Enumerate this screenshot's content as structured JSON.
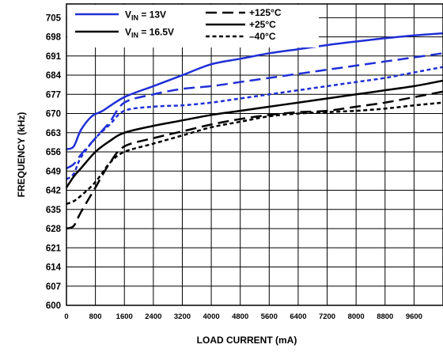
{
  "chart_data": {
    "type": "line",
    "title": "",
    "xlabel": "LOAD CURRENT (mA)",
    "ylabel": "FREQUENCY (kHz)",
    "xlim": [
      0,
      10400
    ],
    "ylim": [
      600,
      710
    ],
    "x_ticks": [
      0,
      800,
      1600,
      2400,
      3200,
      4000,
      4800,
      5600,
      6400,
      7200,
      8000,
      8800,
      9600
    ],
    "y_ticks": [
      600,
      607,
      614,
      621,
      628,
      635,
      642,
      649,
      656,
      663,
      670,
      677,
      684,
      691,
      698,
      705
    ],
    "grid": true,
    "legend": {
      "placement": "top-left",
      "vin_entries": [
        {
          "label_prefix": "V",
          "label_sub": "IN",
          "label_suffix": " = 13V",
          "color": "#1f2fd6"
        },
        {
          "label_prefix": "V",
          "label_sub": "IN",
          "label_suffix": " = 16.5V",
          "color": "#000000"
        }
      ],
      "temp_entries": [
        {
          "label": "+125°C",
          "dash": "long-dash"
        },
        {
          "label": "+25°C",
          "dash": "solid"
        },
        {
          "label": "–40°C",
          "dash": "short-dash"
        }
      ]
    },
    "series": [
      {
        "vin": "13V",
        "temp": "+25°C",
        "color": "#1f2fd6",
        "dash": "solid",
        "x": [
          0,
          200,
          400,
          700,
          1000,
          1600,
          2400,
          3200,
          4000,
          4800,
          5600,
          6400,
          7200,
          8000,
          8800,
          9600,
          10400
        ],
        "y": [
          657,
          658,
          664,
          669,
          671,
          676,
          680,
          684,
          688,
          690,
          692,
          693.5,
          695,
          696.3,
          697.5,
          698.5,
          699.3
        ]
      },
      {
        "vin": "13V",
        "temp": "+125°C",
        "color": "#1f2fd6",
        "dash": "long-dash",
        "x": [
          0,
          200,
          400,
          800,
          1200,
          1600,
          2400,
          3200,
          4000,
          4800,
          5600,
          6400,
          7200,
          8000,
          8800,
          9600,
          10400
        ],
        "y": [
          650,
          651.5,
          655,
          661,
          667,
          674,
          677,
          679,
          680,
          681.5,
          683,
          684.5,
          686,
          687.5,
          689,
          690.5,
          692
        ]
      },
      {
        "vin": "13V",
        "temp": "–40°C",
        "color": "#1f2fd6",
        "dash": "short-dash",
        "x": [
          0,
          200,
          400,
          800,
          1200,
          1600,
          2400,
          3200,
          4000,
          4800,
          5600,
          6400,
          7200,
          8000,
          8800,
          9600,
          10400
        ],
        "y": [
          646,
          648,
          654,
          661,
          666,
          671,
          672.5,
          673,
          674,
          675.5,
          677,
          678.5,
          680,
          681.5,
          683,
          685,
          687
        ]
      },
      {
        "vin": "16.5V",
        "temp": "+25°C",
        "color": "#000000",
        "dash": "solid",
        "x": [
          0,
          200,
          400,
          800,
          1200,
          1600,
          2400,
          3200,
          4000,
          4800,
          5600,
          6400,
          7200,
          8000,
          8800,
          9600,
          10400
        ],
        "y": [
          643,
          647,
          650,
          656,
          660,
          663,
          665.5,
          667.5,
          669.5,
          671,
          672.5,
          674,
          675.5,
          677,
          678.5,
          680,
          682
        ]
      },
      {
        "vin": "16.5V",
        "temp": "+125°C",
        "color": "#000000",
        "dash": "long-dash",
        "x": [
          0,
          200,
          400,
          800,
          1200,
          1600,
          2400,
          3200,
          4000,
          4800,
          5600,
          6400,
          7200,
          8000,
          8800,
          9600,
          10400
        ],
        "y": [
          628,
          629,
          634,
          643,
          652,
          658,
          661,
          663.5,
          666,
          668,
          669.5,
          670.5,
          671,
          672.5,
          674,
          676,
          678
        ]
      },
      {
        "vin": "16.5V",
        "temp": "–40°C",
        "color": "#000000",
        "dash": "short-dash",
        "x": [
          0,
          200,
          400,
          800,
          1200,
          1600,
          2400,
          3200,
          4000,
          4800,
          5600,
          6400,
          7200,
          8000,
          8800,
          9600,
          10400
        ],
        "y": [
          637,
          638,
          640,
          645,
          652,
          656,
          659,
          662,
          665,
          667,
          669,
          670,
          670.5,
          671,
          671.8,
          673,
          674
        ]
      }
    ]
  }
}
